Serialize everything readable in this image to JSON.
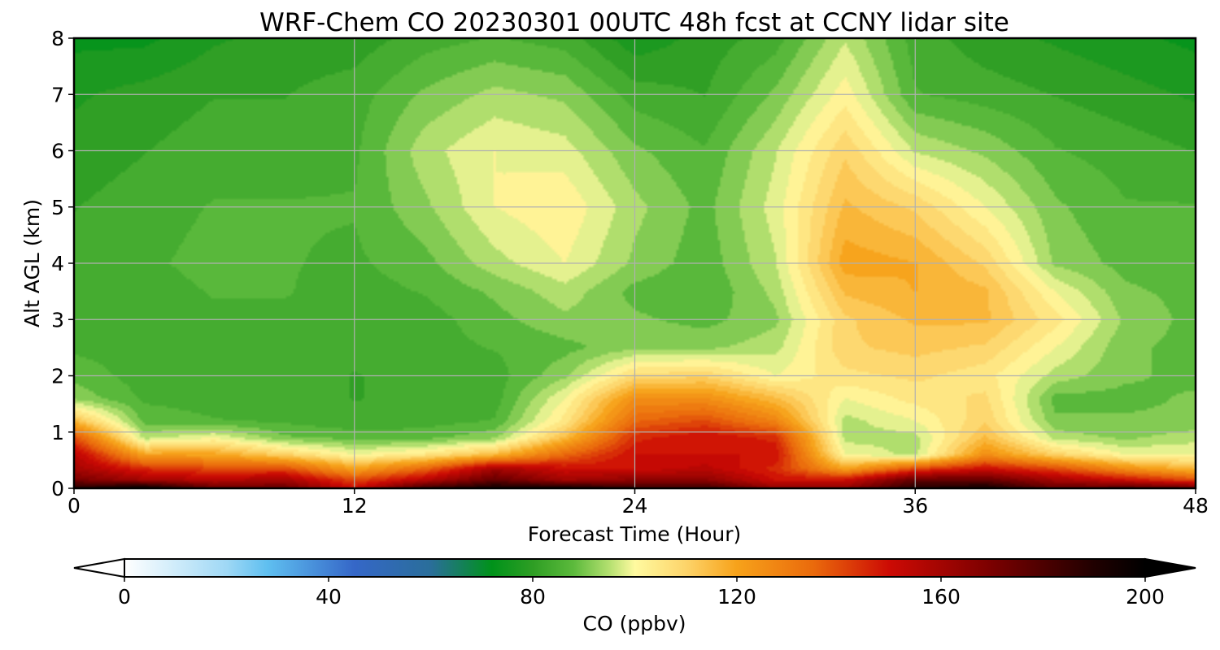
{
  "chart_data": {
    "type": "heatmap",
    "title": "WRF-Chem CO  20230301 00UTC 48h fcst at CCNY lidar site",
    "xlabel": "Forecast Time (Hour)",
    "ylabel": "Alt AGL (km)",
    "xlim": [
      0,
      48
    ],
    "ylim": [
      0,
      8
    ],
    "x_ticks": [
      "0",
      "12",
      "24",
      "36",
      "48"
    ],
    "y_ticks": [
      "0",
      "1",
      "2",
      "3",
      "4",
      "5",
      "6",
      "7",
      "8"
    ],
    "grid": true,
    "colorbar": {
      "label": "CO  (ppbv)",
      "orientation": "horizontal",
      "placement": "bottom",
      "range": [
        0,
        200
      ],
      "extend": "both",
      "ticks": [
        "0",
        "40",
        "80",
        "120",
        "160",
        "200"
      ],
      "stops": [
        {
          "value": 0,
          "color": "#ffffff"
        },
        {
          "value": 20,
          "color": "#9fd8f5"
        },
        {
          "value": 28,
          "color": "#5fbff0"
        },
        {
          "value": 45,
          "color": "#3567c8"
        },
        {
          "value": 60,
          "color": "#2a6e9a"
        },
        {
          "value": 72,
          "color": "#00921a"
        },
        {
          "value": 80,
          "color": "#2e9e24"
        },
        {
          "value": 88,
          "color": "#5cba3c"
        },
        {
          "value": 95,
          "color": "#b4e070"
        },
        {
          "value": 100,
          "color": "#fffaa0"
        },
        {
          "value": 110,
          "color": "#fdd46a"
        },
        {
          "value": 120,
          "color": "#f7a21a"
        },
        {
          "value": 135,
          "color": "#ea6a0c"
        },
        {
          "value": 150,
          "color": "#cc0a04"
        },
        {
          "value": 170,
          "color": "#7a0000"
        },
        {
          "value": 190,
          "color": "#200000"
        },
        {
          "value": 200,
          "color": "#000000"
        }
      ]
    },
    "field_hours": [
      0,
      3,
      6,
      9,
      12,
      15,
      18,
      21,
      24,
      27,
      30,
      33,
      36,
      39,
      42,
      45,
      48
    ],
    "field_altitudes_km": [
      0,
      0.15,
      0.35,
      0.6,
      0.9,
      1.2,
      1.6,
      2,
      2.5,
      3,
      3.5,
      4,
      5,
      6,
      7,
      8
    ],
    "field_ppbv": [
      [
        190,
        200,
        175,
        175,
        150,
        185,
        195,
        195,
        185,
        185,
        165,
        165,
        190,
        195,
        175,
        180,
        175
      ],
      [
        170,
        160,
        155,
        160,
        140,
        155,
        175,
        160,
        165,
        165,
        150,
        150,
        175,
        175,
        160,
        150,
        140
      ],
      [
        160,
        145,
        140,
        140,
        120,
        135,
        160,
        150,
        150,
        155,
        145,
        120,
        140,
        150,
        140,
        125,
        115
      ],
      [
        155,
        120,
        120,
        110,
        100,
        105,
        115,
        135,
        150,
        150,
        150,
        100,
        95,
        125,
        110,
        100,
        100
      ],
      [
        140,
        95,
        100,
        90,
        88,
        88,
        92,
        115,
        145,
        150,
        145,
        95,
        95,
        115,
        95,
        92,
        95
      ],
      [
        115,
        88,
        86,
        85,
        83,
        84,
        86,
        105,
        135,
        140,
        128,
        95,
        100,
        110,
        90,
        90,
        90
      ],
      [
        92,
        85,
        84,
        84,
        82,
        83,
        84,
        100,
        125,
        125,
        115,
        100,
        105,
        108,
        88,
        88,
        90
      ],
      [
        88,
        84,
        84,
        84,
        82,
        83,
        84,
        92,
        108,
        110,
        100,
        106,
        108,
        105,
        95,
        90,
        88
      ],
      [
        85,
        84,
        85,
        84,
        83,
        84,
        86,
        88,
        92,
        92,
        95,
        110,
        112,
        110,
        100,
        90,
        88
      ],
      [
        85,
        84,
        85,
        85,
        83,
        84,
        88,
        92,
        90,
        88,
        92,
        110,
        115,
        115,
        105,
        92,
        88
      ],
      [
        84,
        84,
        86,
        86,
        84,
        86,
        90,
        95,
        88,
        86,
        94,
        115,
        118,
        115,
        100,
        90,
        88
      ],
      [
        84,
        85,
        87,
        86,
        85,
        88,
        95,
        100,
        92,
        87,
        96,
        120,
        118,
        110,
        92,
        88,
        87
      ],
      [
        82,
        84,
        86,
        86,
        86,
        92,
        100,
        103,
        94,
        88,
        98,
        115,
        110,
        100,
        90,
        86,
        86
      ],
      [
        80,
        82,
        84,
        84,
        85,
        95,
        100,
        98,
        90,
        86,
        96,
        110,
        96,
        92,
        86,
        84,
        82
      ],
      [
        78,
        80,
        82,
        82,
        84,
        90,
        94,
        92,
        84,
        82,
        90,
        102,
        86,
        84,
        82,
        80,
        78
      ],
      [
        74,
        74,
        78,
        80,
        80,
        84,
        86,
        84,
        76,
        80,
        84,
        96,
        84,
        80,
        78,
        76,
        74
      ]
    ]
  }
}
